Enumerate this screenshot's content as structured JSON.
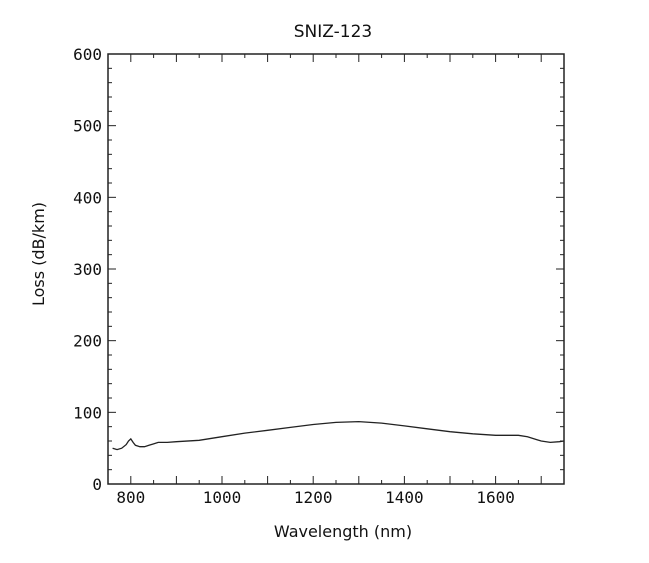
{
  "chart_data": {
    "type": "line",
    "title": "SNIZ-123",
    "xlabel": "Wavelength (nm)",
    "ylabel": "Loss (dB/km)",
    "xlim": [
      750,
      1750
    ],
    "ylim": [
      0,
      600
    ],
    "x_ticks": [
      800,
      1000,
      1200,
      1400,
      1600
    ],
    "y_ticks": [
      0,
      100,
      200,
      300,
      400,
      500,
      600
    ],
    "x_minor_step": 50,
    "y_minor_step": 20,
    "grid": false,
    "series": [
      {
        "x": [
          760,
          770,
          780,
          790,
          795,
          800,
          805,
          810,
          820,
          830,
          840,
          850,
          860,
          870,
          880,
          900,
          950,
          1000,
          1050,
          1100,
          1150,
          1200,
          1250,
          1300,
          1350,
          1400,
          1450,
          1500,
          1550,
          1600,
          1650,
          1670,
          1690,
          1700,
          1720,
          1740,
          1750
        ],
        "y": [
          50,
          48,
          50,
          55,
          60,
          63,
          58,
          54,
          52,
          52,
          54,
          56,
          58,
          58,
          58,
          59,
          61,
          66,
          71,
          75,
          79,
          83,
          86,
          87,
          85,
          81,
          77,
          73,
          70,
          68,
          68,
          66,
          62,
          60,
          58,
          59,
          60
        ]
      }
    ]
  }
}
